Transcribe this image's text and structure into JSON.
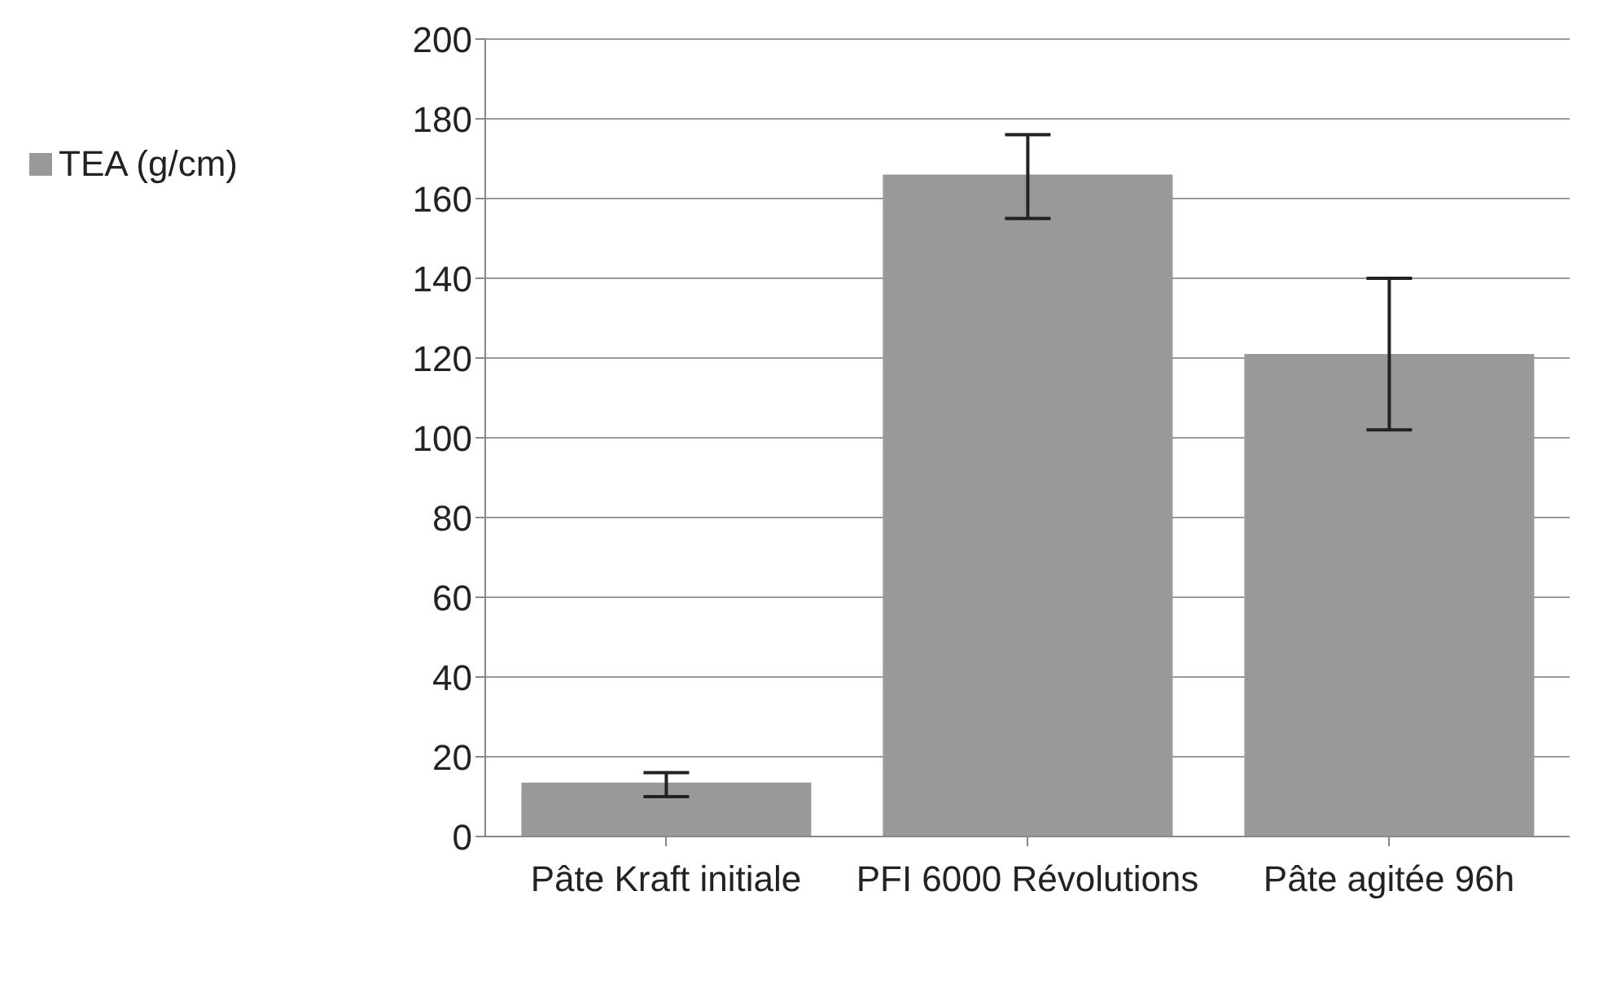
{
  "chart_data": {
    "type": "bar",
    "categories": [
      "Pâte Kraft initiale",
      "PFI 6000 Révolutions",
      "Pâte agitée 96h"
    ],
    "series": [
      {
        "name": "TEA (g/cm)",
        "color": "#999999",
        "values": [
          13.5,
          166,
          121
        ],
        "errors": [
          [
            10,
            16
          ],
          [
            155,
            176
          ],
          [
            102,
            140
          ]
        ]
      }
    ],
    "ylim": [
      0,
      200
    ],
    "yticks": [
      0,
      20,
      40,
      60,
      80,
      100,
      120,
      140,
      160,
      180,
      200
    ],
    "grid": "y",
    "legend": "left"
  }
}
